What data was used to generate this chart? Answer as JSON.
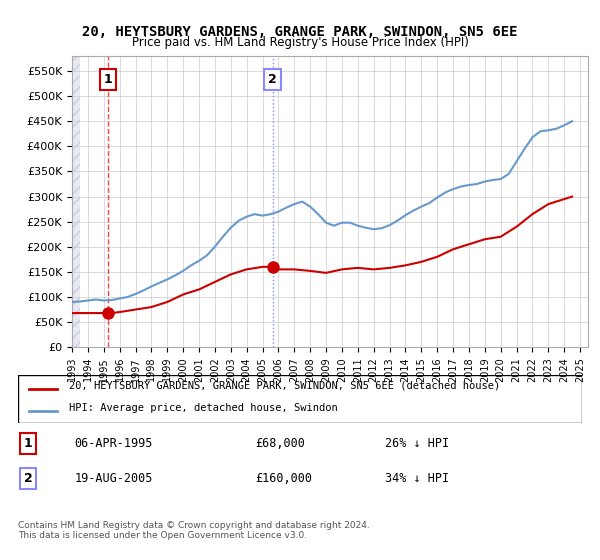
{
  "title": "20, HEYTSBURY GARDENS, GRANGE PARK, SWINDON, SN5 6EE",
  "subtitle": "Price paid vs. HM Land Registry's House Price Index (HPI)",
  "legend_line1": "20, HEYTSBURY GARDENS, GRANGE PARK, SWINDON, SN5 6EE (detached house)",
  "legend_line2": "HPI: Average price, detached house, Swindon",
  "transaction1_label": "1",
  "transaction1_date": "06-APR-1995",
  "transaction1_price": "£68,000",
  "transaction1_hpi": "26% ↓ HPI",
  "transaction2_label": "2",
  "transaction2_date": "19-AUG-2005",
  "transaction2_price": "£160,000",
  "transaction2_hpi": "34% ↓ HPI",
  "footnote": "Contains HM Land Registry data © Crown copyright and database right 2024.\nThis data is licensed under the Open Government Licence v3.0.",
  "vline1_x": 1995.27,
  "vline2_x": 2005.63,
  "point1_x": 1995.27,
  "point1_y": 68000,
  "point2_x": 2005.63,
  "point2_y": 160000,
  "hpi_color": "#6699cc",
  "price_color": "#cc0000",
  "vline_color": "#ff4444",
  "background_hatched_color": "#e8e8f0",
  "ylim": [
    0,
    580000
  ],
  "yticks": [
    0,
    50000,
    100000,
    150000,
    200000,
    250000,
    300000,
    350000,
    400000,
    450000,
    500000,
    550000
  ],
  "xlim_left": 1993.0,
  "xlim_right": 2025.5,
  "hpi_years": [
    1993,
    1993.5,
    1994,
    1994.5,
    1995,
    1995.5,
    1996,
    1996.5,
    1997,
    1997.5,
    1998,
    1998.5,
    1999,
    1999.5,
    2000,
    2000.5,
    2001,
    2001.5,
    2002,
    2002.5,
    2003,
    2003.5,
    2004,
    2004.5,
    2005,
    2005.5,
    2006,
    2006.5,
    2007,
    2007.5,
    2008,
    2008.5,
    2009,
    2009.5,
    2010,
    2010.5,
    2011,
    2011.5,
    2012,
    2012.5,
    2013,
    2013.5,
    2014,
    2014.5,
    2015,
    2015.5,
    2016,
    2016.5,
    2017,
    2017.5,
    2018,
    2018.5,
    2019,
    2019.5,
    2020,
    2020.5,
    2021,
    2021.5,
    2022,
    2022.5,
    2023,
    2023.5,
    2024,
    2024.5
  ],
  "hpi_values": [
    90000,
    91000,
    93000,
    95000,
    93000,
    94000,
    97000,
    100000,
    106000,
    113000,
    121000,
    128000,
    135000,
    143000,
    152000,
    163000,
    172000,
    183000,
    200000,
    220000,
    238000,
    252000,
    260000,
    265000,
    262000,
    265000,
    270000,
    278000,
    285000,
    290000,
    280000,
    265000,
    248000,
    242000,
    248000,
    248000,
    242000,
    238000,
    235000,
    237000,
    243000,
    252000,
    263000,
    272000,
    280000,
    287000,
    298000,
    308000,
    315000,
    320000,
    323000,
    325000,
    330000,
    333000,
    335000,
    345000,
    370000,
    395000,
    418000,
    430000,
    432000,
    435000,
    442000,
    450000
  ],
  "price_years": [
    1993,
    1994,
    1995,
    1995.5,
    1996,
    1997,
    1998,
    1999,
    2000,
    2001,
    2002,
    2003,
    2004,
    2005,
    2005.5,
    2005.8,
    2006,
    2007,
    2008,
    2009,
    2010,
    2011,
    2012,
    2013,
    2014,
    2015,
    2016,
    2017,
    2018,
    2019,
    2020,
    2021,
    2022,
    2023,
    2024,
    2024.5
  ],
  "price_values": [
    68000,
    68000,
    68000,
    68000,
    70000,
    75000,
    80000,
    90000,
    105000,
    115000,
    130000,
    145000,
    155000,
    160000,
    160000,
    155000,
    155000,
    155000,
    152000,
    148000,
    155000,
    158000,
    155000,
    158000,
    163000,
    170000,
    180000,
    195000,
    205000,
    215000,
    220000,
    240000,
    265000,
    285000,
    295000,
    300000
  ]
}
